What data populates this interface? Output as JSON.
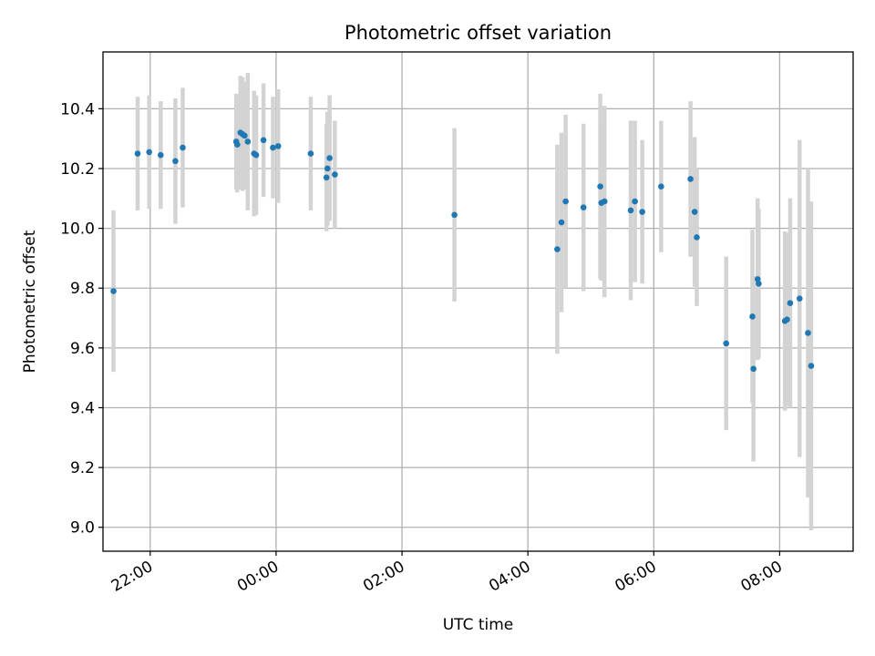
{
  "chart_data": {
    "type": "scatter",
    "title": "Photometric offset variation",
    "xlabel": "UTC time",
    "ylabel": "Photometric offset",
    "x_axis_type": "time",
    "xlim": [
      "21:15",
      "09:10"
    ],
    "ylim": [
      8.92,
      10.59
    ],
    "yticks": [
      9.0,
      9.2,
      9.4,
      9.6,
      9.8,
      10.0,
      10.2,
      10.4
    ],
    "xticks": [
      "22:00",
      "00:00",
      "02:00",
      "04:00",
      "06:00",
      "08:00"
    ],
    "grid": true,
    "colors": {
      "points": "#1f77b4",
      "error_bars": "#d3d3d3",
      "grid": "#b0b0b0"
    },
    "points": [
      {
        "x": "21:25",
        "y": 9.79,
        "err": 0.27
      },
      {
        "x": "21:48",
        "y": 10.25,
        "err": 0.19
      },
      {
        "x": "21:59",
        "y": 10.255,
        "err": 0.19
      },
      {
        "x": "22:10",
        "y": 10.245,
        "err": 0.18
      },
      {
        "x": "22:24",
        "y": 10.225,
        "err": 0.21
      },
      {
        "x": "22:31",
        "y": 10.27,
        "err": 0.2
      },
      {
        "x": "23:22",
        "y": 10.29,
        "err": 0.16
      },
      {
        "x": "23:23",
        "y": 10.28,
        "err": 0.16
      },
      {
        "x": "23:26",
        "y": 10.32,
        "err": 0.19
      },
      {
        "x": "23:28",
        "y": 10.315,
        "err": 0.19
      },
      {
        "x": "23:30",
        "y": 10.31,
        "err": 0.18
      },
      {
        "x": "23:33",
        "y": 10.29,
        "err": 0.23
      },
      {
        "x": "23:39",
        "y": 10.25,
        "err": 0.21
      },
      {
        "x": "23:41",
        "y": 10.245,
        "err": 0.2
      },
      {
        "x": "23:48",
        "y": 10.295,
        "err": 0.19
      },
      {
        "x": "23:57",
        "y": 10.27,
        "err": 0.17
      },
      {
        "x": "00:02",
        "y": 10.275,
        "err": 0.19
      },
      {
        "x": "00:33",
        "y": 10.25,
        "err": 0.19
      },
      {
        "x": "00:48",
        "y": 10.17,
        "err": 0.18
      },
      {
        "x": "00:49",
        "y": 10.2,
        "err": 0.19
      },
      {
        "x": "00:51",
        "y": 10.235,
        "err": 0.21
      },
      {
        "x": "00:56",
        "y": 10.18,
        "err": 0.18
      },
      {
        "x": "02:50",
        "y": 10.045,
        "err": 0.29
      },
      {
        "x": "04:28",
        "y": 9.93,
        "err": 0.35
      },
      {
        "x": "04:32",
        "y": 10.02,
        "err": 0.3
      },
      {
        "x": "04:36",
        "y": 10.09,
        "err": 0.29
      },
      {
        "x": "04:53",
        "y": 10.07,
        "err": 0.28
      },
      {
        "x": "05:09",
        "y": 10.14,
        "err": 0.31
      },
      {
        "x": "05:10",
        "y": 10.085,
        "err": 0.26
      },
      {
        "x": "05:13",
        "y": 10.09,
        "err": 0.32
      },
      {
        "x": "05:38",
        "y": 10.06,
        "err": 0.3
      },
      {
        "x": "05:42",
        "y": 10.09,
        "err": 0.27
      },
      {
        "x": "05:49",
        "y": 10.055,
        "err": 0.24
      },
      {
        "x": "06:07",
        "y": 10.14,
        "err": 0.22
      },
      {
        "x": "06:35",
        "y": 10.165,
        "err": 0.26
      },
      {
        "x": "06:39",
        "y": 10.055,
        "err": 0.25
      },
      {
        "x": "06:41",
        "y": 9.97,
        "err": 0.23
      },
      {
        "x": "07:09",
        "y": 9.615,
        "err": 0.29
      },
      {
        "x": "07:34",
        "y": 9.705,
        "err": 0.29
      },
      {
        "x": "07:35",
        "y": 9.53,
        "err": 0.31
      },
      {
        "x": "07:39",
        "y": 9.83,
        "err": 0.27
      },
      {
        "x": "07:40",
        "y": 9.815,
        "err": 0.25
      },
      {
        "x": "08:05",
        "y": 9.69,
        "err": 0.3
      },
      {
        "x": "08:07",
        "y": 9.695,
        "err": 0.29
      },
      {
        "x": "08:10",
        "y": 9.75,
        "err": 0.35
      },
      {
        "x": "08:19",
        "y": 9.765,
        "err": 0.53
      },
      {
        "x": "08:27",
        "y": 9.65,
        "err": 0.55
      },
      {
        "x": "08:30",
        "y": 9.54,
        "err": 0.55
      }
    ]
  }
}
